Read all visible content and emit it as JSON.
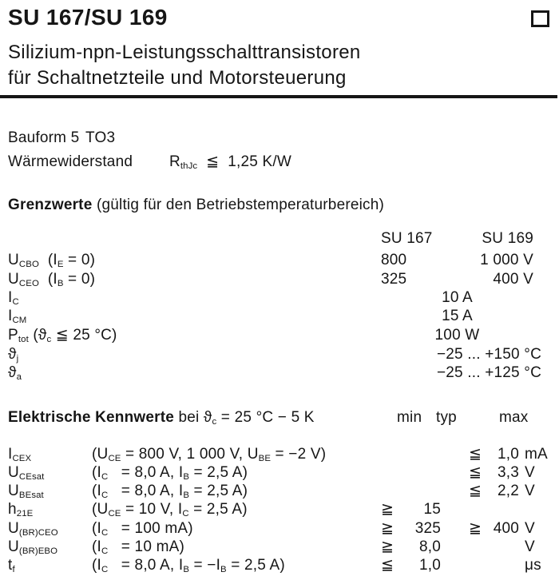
{
  "header": {
    "title": "SU 167/SU 169",
    "subtitle_line1": "Silizium-npn-Leistungsschalttransistoren",
    "subtitle_line2": "für Schaltnetzteile und Motorsteuerung"
  },
  "info": {
    "bauform": "Bauform 5",
    "package": "TO3",
    "thermal_label": "Wärmewiderstand",
    "thermal_value": [
      {
        "t": "R"
      },
      {
        "s": "thJc"
      },
      {
        "t": "  ≦  1,25 K/W"
      }
    ]
  },
  "grenzwerte": {
    "heading_bold": "Grenzwerte",
    "heading_rest": " (gültig für den Betriebstemperaturbereich)",
    "col_su167": "SU 167",
    "col_su169": "SU 169",
    "rows": [
      {
        "label": [
          {
            "t": "U"
          },
          {
            "s": "CBO"
          },
          {
            "t": "  (I"
          },
          {
            "s": "E"
          },
          {
            "t": " = 0)"
          }
        ],
        "v167": "800",
        "v169": "1 000 V"
      },
      {
        "label": [
          {
            "t": "U"
          },
          {
            "s": "CEO"
          },
          {
            "t": "  (I"
          },
          {
            "s": "B"
          },
          {
            "t": " = 0)"
          }
        ],
        "v167": "325",
        "v169": "400 V"
      },
      {
        "label": [
          {
            "t": "I"
          },
          {
            "s": "C"
          }
        ],
        "center": "10 A"
      },
      {
        "label": [
          {
            "t": "I"
          },
          {
            "s": "CM"
          }
        ],
        "center": "15 A"
      },
      {
        "label": [
          {
            "t": "P"
          },
          {
            "s": "tot"
          },
          {
            "t": " (ϑ"
          },
          {
            "s": "c"
          },
          {
            "t": " ≦ 25 °C)"
          }
        ],
        "center": "100 W"
      },
      {
        "label": [
          {
            "t": "ϑ"
          },
          {
            "s": "j"
          }
        ],
        "wide": "−25 ... +150 °C"
      },
      {
        "label": [
          {
            "t": "ϑ"
          },
          {
            "s": "a"
          }
        ],
        "wide": "−25 ... +125 °C"
      }
    ]
  },
  "kennwerte": {
    "heading_bold": "Elektrische Kennwerte",
    "heading_rest": [
      {
        "t": " bei ϑ"
      },
      {
        "s": "c"
      },
      {
        "t": " = 25 °C − 5 K"
      }
    ],
    "col_min": "min",
    "col_typ": "typ",
    "col_max": "max",
    "rows": [
      {
        "sym": [
          {
            "t": "I"
          },
          {
            "s": "CEX"
          }
        ],
        "cond": [
          {
            "t": "(U"
          },
          {
            "s": "CE"
          },
          {
            "t": " = 800 V, 1 000 V, U"
          },
          {
            "s": "BE"
          },
          {
            "t": " = −2 V)"
          }
        ],
        "max_rel": "≦",
        "max_val": "1,0",
        "unit": "mA"
      },
      {
        "sym": [
          {
            "t": "U"
          },
          {
            "s": "CEsat"
          }
        ],
        "cond": [
          {
            "t": "(I"
          },
          {
            "s": "C"
          },
          {
            "t": "   = 8,0 A, I"
          },
          {
            "s": "B"
          },
          {
            "t": " = 2,5 A)"
          }
        ],
        "max_rel": "≦",
        "max_val": "3,3",
        "unit": "V"
      },
      {
        "sym": [
          {
            "t": "U"
          },
          {
            "s": "BEsat"
          }
        ],
        "cond": [
          {
            "t": "(I"
          },
          {
            "s": "C"
          },
          {
            "t": "   = 8,0 A, I"
          },
          {
            "s": "B"
          },
          {
            "t": " = 2,5 A)"
          }
        ],
        "max_rel": "≦",
        "max_val": "2,2",
        "unit": "V"
      },
      {
        "sym": [
          {
            "t": "h"
          },
          {
            "s": "21E"
          }
        ],
        "cond": [
          {
            "t": "(U"
          },
          {
            "s": "CE"
          },
          {
            "t": " = 10 V, I"
          },
          {
            "s": "C"
          },
          {
            "t": " = 2,5 A)"
          }
        ],
        "min_rel": "≧",
        "min_val": "15"
      },
      {
        "sym": [
          {
            "t": "U"
          },
          {
            "s": "(BR)CEO"
          }
        ],
        "cond": [
          {
            "t": "(I"
          },
          {
            "s": "C"
          },
          {
            "t": "   = 100 mA)"
          }
        ],
        "min_rel": "≧",
        "min_val": "325",
        "max_rel": "≧",
        "max_val": "400",
        "unit": "V"
      },
      {
        "sym": [
          {
            "t": "U"
          },
          {
            "s": "(BR)EBO"
          }
        ],
        "cond": [
          {
            "t": "(I"
          },
          {
            "s": "C"
          },
          {
            "t": "   = 10 mA)"
          }
        ],
        "min_rel": "≧",
        "min_val": "8,0",
        "unit": "V"
      },
      {
        "sym": [
          {
            "t": "t"
          },
          {
            "s": "f"
          }
        ],
        "cond": [
          {
            "t": "(I"
          },
          {
            "s": "C"
          },
          {
            "t": "   = 8,0 A, I"
          },
          {
            "s": "B"
          },
          {
            "t": " = −I"
          },
          {
            "s": "B"
          },
          {
            "t": " = 2,5 A)"
          }
        ],
        "min_rel": "≦",
        "min_val": "1,0",
        "unit": "μs"
      }
    ]
  }
}
